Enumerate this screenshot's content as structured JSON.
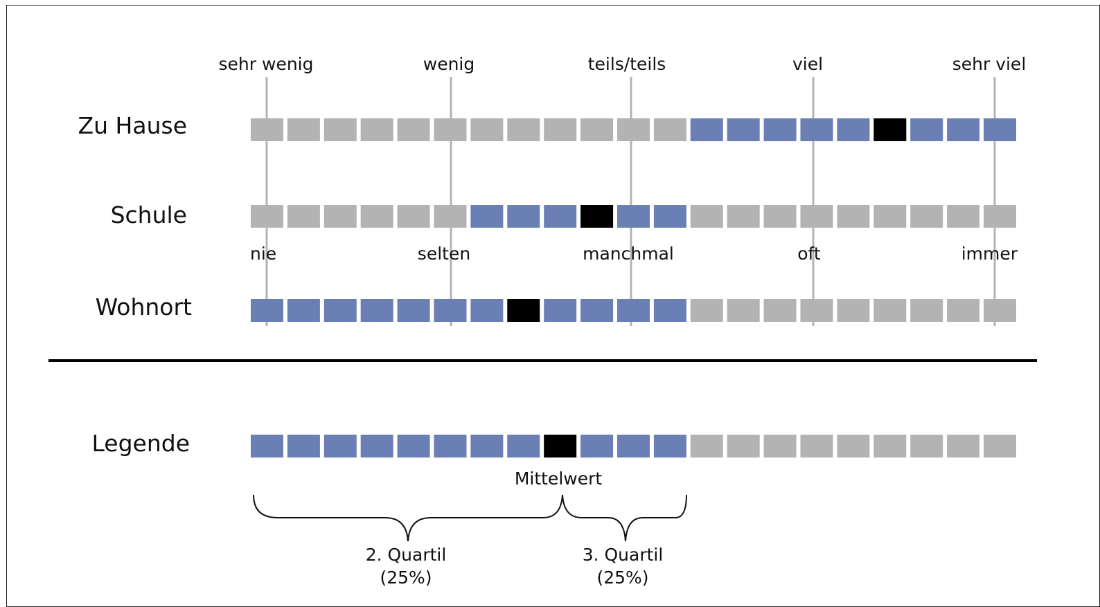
{
  "colors": {
    "quartile": "#6a7fb3",
    "outside": "#b3b3b3",
    "mean": "#000000",
    "gridline": "#b3b3b3",
    "divider": "#000000"
  },
  "segments_per_row": 21,
  "top_scale": {
    "labels": [
      "sehr wenig",
      "wenig",
      "teils/teils",
      "viel",
      "sehr viel"
    ]
  },
  "middle_scale": {
    "labels": [
      "nie",
      "selten",
      "manchmal",
      "oft",
      "immer"
    ]
  },
  "rows": [
    {
      "label": "Zu Hause",
      "blue_start": 12,
      "blue_end": 20,
      "mean": 17
    },
    {
      "label": "Schule",
      "blue_start": 6,
      "blue_end": 11,
      "mean": 9
    },
    {
      "label": "Wohnort",
      "blue_start": 0,
      "blue_end": 11,
      "mean": 7
    }
  ],
  "legend": {
    "label": "Legende",
    "blue_start": 0,
    "blue_end": 11,
    "mean": 8,
    "mean_label": "Mittelwert",
    "q2_label": "2. Quartil",
    "q2_pct": "(25%)",
    "q3_label": "3. Quartil",
    "q3_pct": "(25%)"
  }
}
